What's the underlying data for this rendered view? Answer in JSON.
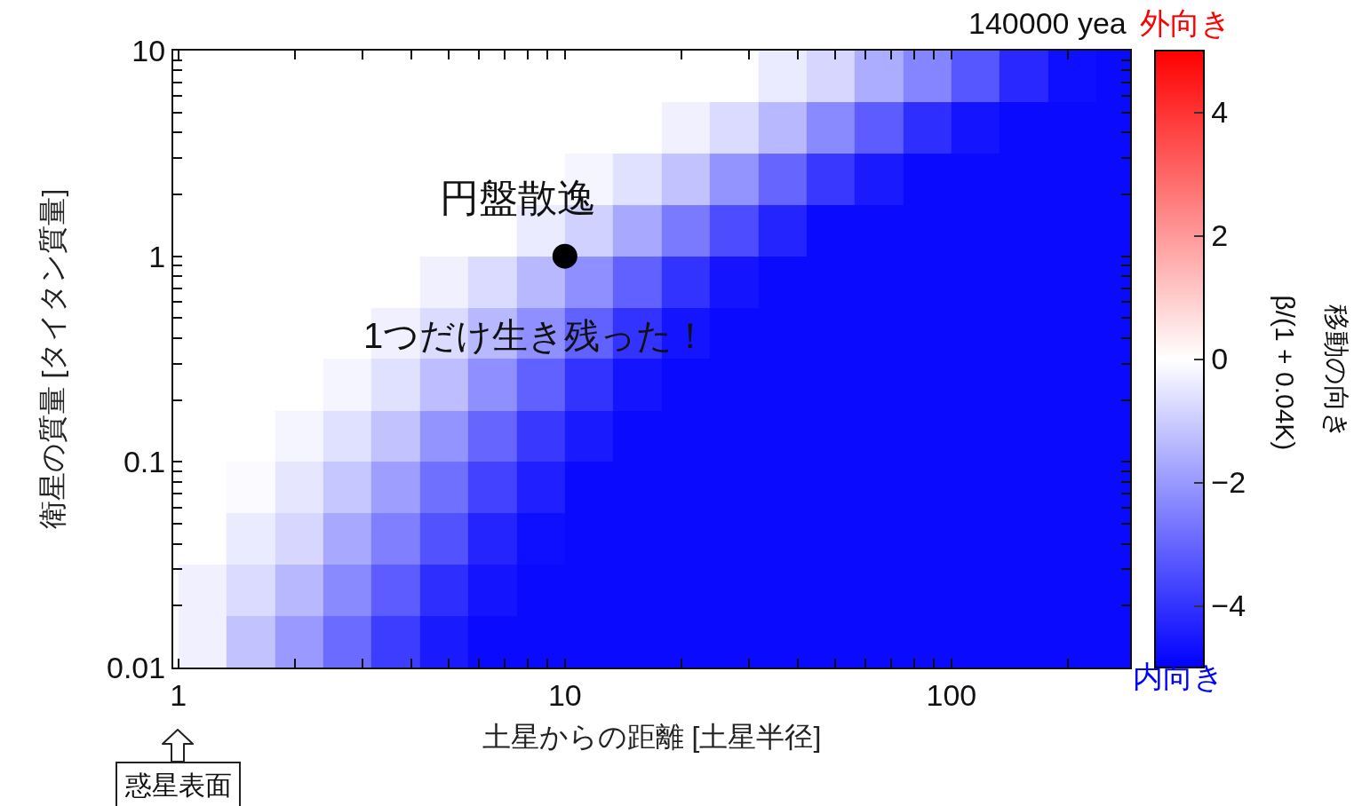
{
  "chart_data": {
    "type": "heatmap",
    "xlabel": "土星からの距離 [土星半径]",
    "ylabel": "衛星の質量 [タイタン質量]",
    "clabel": "移動の向き\nβ/(1 + 0.04K)",
    "annotations": [
      "円盤散逸",
      {
        "text": "1つだけ生き残った！",
        "x": 10,
        "y": 1
      },
      "惑星表面",
      "140000 yea",
      "外向き",
      "内向き"
    ],
    "log": "xy",
    "xlim": [
      0.97,
      290
    ],
    "ylim": [
      0.01,
      10
    ],
    "xticks": [
      1,
      {
        "value": 2,
        "label": null
      },
      {
        "value": 3,
        "label": null
      },
      {
        "value": 4,
        "label": null
      },
      {
        "value": 5,
        "label": null
      },
      {
        "value": 6,
        "label": null
      },
      {
        "value": 7,
        "label": null
      },
      {
        "value": 8,
        "label": null
      },
      {
        "value": 9,
        "label": null
      },
      10,
      {
        "value": 20,
        "label": null
      },
      {
        "value": 30,
        "label": null
      },
      {
        "value": 40,
        "label": null
      },
      {
        "value": 50,
        "label": null
      },
      {
        "value": 60,
        "label": null
      },
      {
        "value": 70,
        "label": null
      },
      {
        "value": 80,
        "label": null
      },
      {
        "value": 90,
        "label": null
      },
      100,
      {
        "value": 200,
        "label": null
      }
    ],
    "yticks": [
      0.01,
      {
        "value": 0.02,
        "label": null
      },
      {
        "value": 0.03,
        "label": null
      },
      {
        "value": 0.04,
        "label": null
      },
      {
        "value": 0.05,
        "label": null
      },
      {
        "value": 0.06,
        "label": null
      },
      {
        "value": 0.07,
        "label": null
      },
      {
        "value": 0.08,
        "label": null
      },
      {
        "value": 0.09,
        "label": null
      },
      0.1,
      {
        "value": 0.2,
        "label": null
      },
      {
        "value": 0.3,
        "label": null
      },
      {
        "value": 0.4,
        "label": null
      },
      {
        "value": 0.5,
        "label": null
      },
      {
        "value": 0.6,
        "label": null
      },
      {
        "value": 0.7,
        "label": null
      },
      {
        "value": 0.8,
        "label": null
      },
      {
        "value": 0.9,
        "label": null
      },
      1,
      {
        "value": 2,
        "label": null
      },
      {
        "value": 3,
        "label": null
      },
      {
        "value": 4,
        "label": null
      },
      {
        "value": 5,
        "label": null
      },
      {
        "value": 6,
        "label": null
      },
      {
        "value": 7,
        "label": null
      },
      {
        "value": 8,
        "label": null
      },
      {
        "value": 9,
        "label": null
      },
      10
    ],
    "clim": [
      -5,
      5
    ],
    "cticks": [
      {
        "value": -4,
        "label": "−4"
      },
      {
        "value": -2,
        "label": "−2"
      },
      0,
      2,
      4
    ],
    "colors": [
      "#0000ff",
      "#ffffff",
      "#ff0000"
    ],
    "x": [
      1.155,
      1.54,
      2.05,
      2.74,
      3.65,
      4.87,
      6.49,
      8.66,
      11.5,
      15.4,
      20.5,
      27.4,
      36.5,
      48.7,
      64.9,
      86.6,
      115,
      154,
      205,
      274
    ],
    "y": [
      7.5,
      4.22,
      2.37,
      1.33,
      0.75,
      0.422,
      0.237,
      0.133,
      0.075,
      0.0422,
      0.0237,
      0.0133
    ],
    "cells": [
      [
        0,
        0,
        0,
        0,
        0,
        0,
        0,
        0,
        0,
        0,
        0,
        0,
        -0.4,
        -0.8,
        -1.6,
        -2.4,
        -3.3,
        -4.2,
        -4.7,
        -4.8
      ],
      [
        0,
        0,
        0,
        0,
        0,
        0,
        0,
        0,
        0,
        0,
        -0.3,
        -0.7,
        -1.4,
        -2.3,
        -3.2,
        -4.1,
        -4.6,
        -4.8,
        -4.8,
        -4.8
      ],
      [
        0,
        0,
        0,
        0,
        0,
        0,
        0,
        0,
        -0.2,
        -0.6,
        -1.2,
        -2.1,
        -3.0,
        -3.9,
        -4.5,
        -4.8,
        -4.8,
        -4.8,
        -4.8,
        -4.8
      ],
      [
        0,
        0,
        0,
        0,
        0,
        0,
        0,
        -0.4,
        -0.9,
        -1.7,
        -2.6,
        -3.5,
        -4.3,
        -4.8,
        -4.8,
        -4.8,
        -4.8,
        -4.8,
        -4.8,
        -4.8
      ],
      [
        0,
        0,
        0,
        0,
        0,
        -0.3,
        -0.7,
        -1.4,
        -2.2,
        -3.1,
        -4.0,
        -4.6,
        -4.8,
        -4.8,
        -4.8,
        -4.8,
        -4.8,
        -4.8,
        -4.8,
        -4.8
      ],
      [
        0,
        0,
        0,
        0,
        -0.3,
        -0.7,
        -1.4,
        -2.2,
        -3.1,
        -4.0,
        -4.6,
        -4.8,
        -4.8,
        -4.8,
        -4.8,
        -4.8,
        -4.8,
        -4.8,
        -4.8,
        -4.8
      ],
      [
        0,
        0,
        0,
        -0.2,
        -0.6,
        -1.3,
        -2.2,
        -3.1,
        -4.0,
        -4.6,
        -4.8,
        -4.8,
        -4.8,
        -4.8,
        -4.8,
        -4.8,
        -4.8,
        -4.8,
        -4.8,
        -4.8
      ],
      [
        0,
        0,
        -0.2,
        -0.6,
        -1.2,
        -2.1,
        -3.0,
        -3.9,
        -4.5,
        -4.8,
        -4.8,
        -4.8,
        -4.8,
        -4.8,
        -4.8,
        -4.8,
        -4.8,
        -4.8,
        -4.8,
        -4.8
      ],
      [
        0,
        -0.1,
        -0.5,
        -1.1,
        -1.9,
        -2.8,
        -3.7,
        -4.4,
        -4.8,
        -4.8,
        -4.8,
        -4.8,
        -4.8,
        -4.8,
        -4.8,
        -4.8,
        -4.8,
        -4.8,
        -4.8,
        -4.8
      ],
      [
        0,
        -0.4,
        -0.8,
        -1.7,
        -2.5,
        -3.4,
        -4.3,
        -4.7,
        -4.8,
        -4.8,
        -4.8,
        -4.8,
        -4.8,
        -4.8,
        -4.8,
        -4.8,
        -4.8,
        -4.8,
        -4.8,
        -4.8
      ],
      [
        -0.3,
        -0.7,
        -1.4,
        -2.3,
        -3.2,
        -4.1,
        -4.6,
        -4.8,
        -4.8,
        -4.8,
        -4.8,
        -4.8,
        -4.8,
        -4.8,
        -4.8,
        -4.8,
        -4.8,
        -4.8,
        -4.8,
        -4.8
      ],
      [
        -0.3,
        -1.2,
        -2.0,
        -2.9,
        -3.8,
        -4.5,
        -4.8,
        -4.8,
        -4.8,
        -4.8,
        -4.8,
        -4.8,
        -4.8,
        -4.8,
        -4.8,
        -4.8,
        -4.8,
        -4.8,
        -4.8,
        -4.8
      ]
    ],
    "series": [
      {
        "type": "scatter",
        "marker": "circle",
        "x": [
          10
        ],
        "values": [
          1
        ],
        "color": "#000000"
      }
    ]
  }
}
